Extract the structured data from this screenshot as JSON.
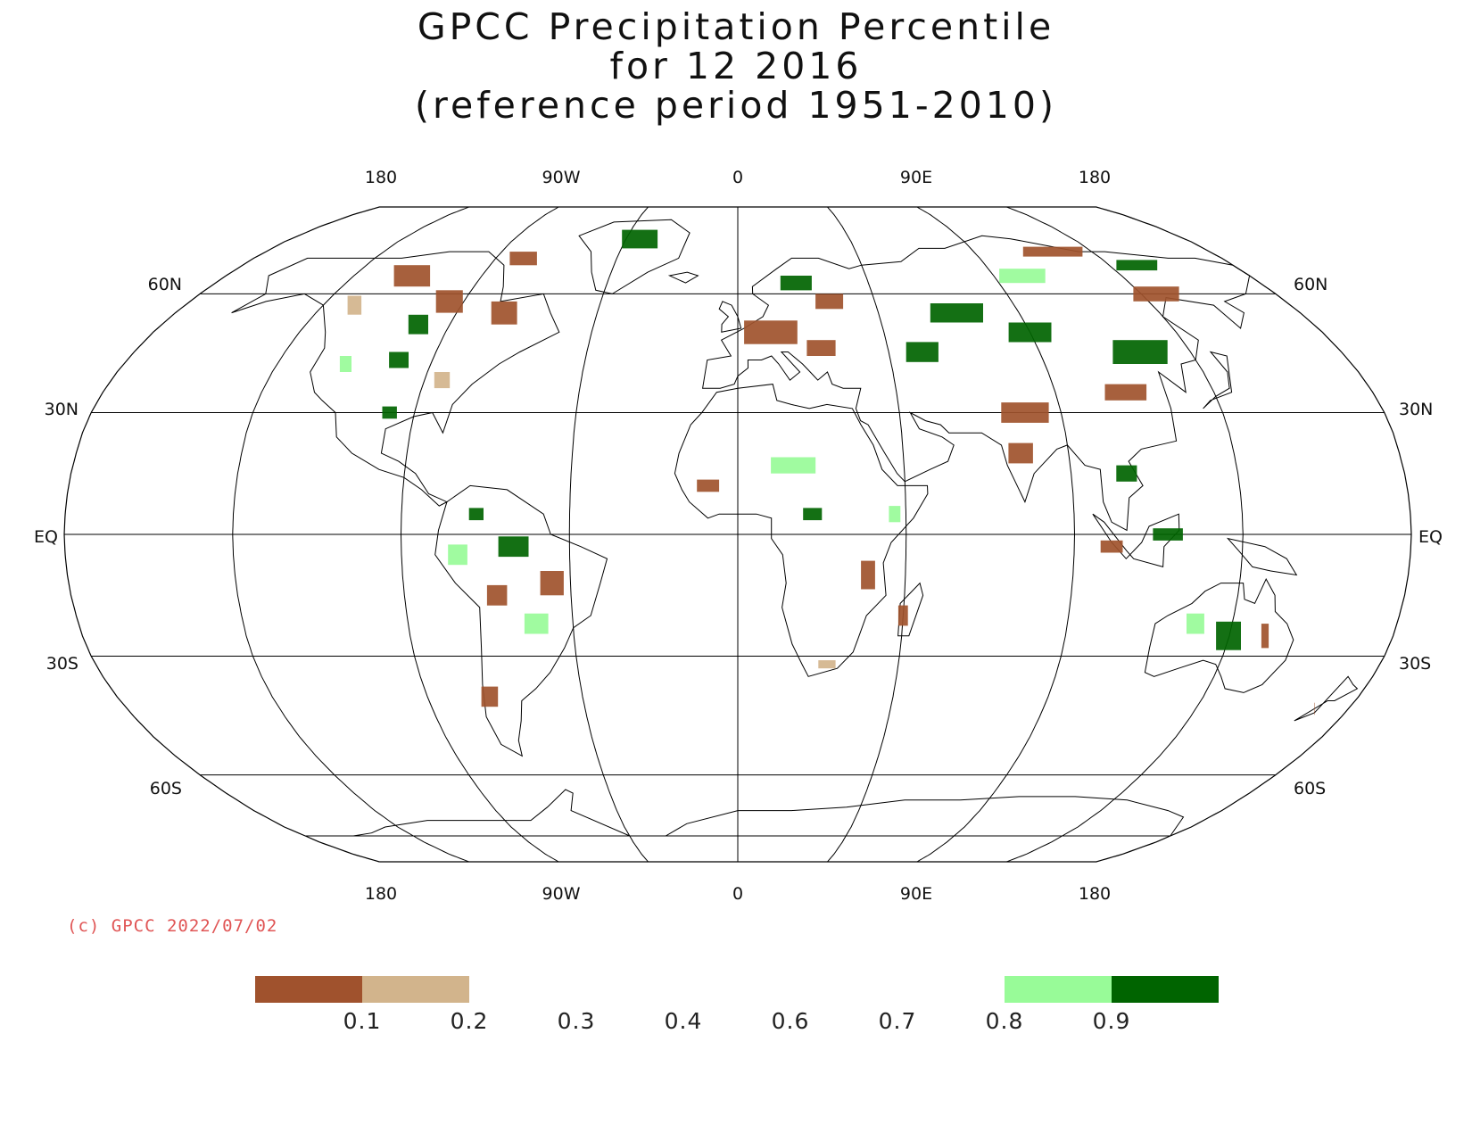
{
  "title": {
    "line1": "GPCC Precipitation Percentile",
    "line2": "for 12 2016",
    "line3": "(reference period 1951-2010)"
  },
  "map": {
    "projection": "Robinson",
    "longitude_labels": [
      "180",
      "90W",
      "0",
      "90E",
      "180"
    ],
    "latitude_labels": {
      "left": [
        "60N",
        "30N",
        "EQ",
        "30S",
        "60S"
      ],
      "right": [
        "60N",
        "30N",
        "EQ",
        "30S",
        "60S"
      ]
    },
    "colors": {
      "below_0_1": "#a0522d",
      "0_1_to_0_2": "#d2b48c",
      "0_8_to_0_9": "#98fb98",
      "above_0_9": "#006400",
      "gridline": "#000000",
      "coastline": "#000000"
    }
  },
  "copyright": "(c) GPCC 2022/07/02",
  "legend": {
    "ticks": [
      "0.1",
      "0.2",
      "0.3",
      "0.4",
      "0.6",
      "0.7",
      "0.8",
      "0.9"
    ],
    "boxes": [
      {
        "name": "lowest",
        "color": "#a0522d"
      },
      {
        "name": "low",
        "color": "#d2b48c"
      },
      {
        "name": "empty1",
        "color": "#ffffff"
      },
      {
        "name": "empty2",
        "color": "#ffffff"
      },
      {
        "name": "empty3",
        "color": "#ffffff"
      },
      {
        "name": "empty4",
        "color": "#ffffff"
      },
      {
        "name": "high",
        "color": "#98fb98"
      },
      {
        "name": "highest",
        "color": "#006400"
      }
    ]
  }
}
